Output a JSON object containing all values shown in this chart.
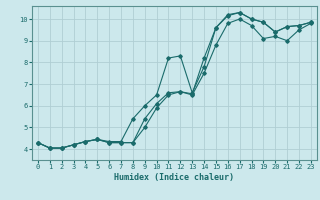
{
  "xlabel": "Humidex (Indice chaleur)",
  "bg_color": "#cce8ec",
  "grid_color": "#b0ced4",
  "line_color": "#1a6b6b",
  "xlim": [
    -0.5,
    23.5
  ],
  "ylim": [
    3.5,
    10.6
  ],
  "xticks": [
    0,
    1,
    2,
    3,
    4,
    5,
    6,
    7,
    8,
    9,
    10,
    11,
    12,
    13,
    14,
    15,
    16,
    17,
    18,
    19,
    20,
    21,
    22,
    23
  ],
  "yticks": [
    4,
    5,
    6,
    7,
    8,
    9,
    10
  ],
  "lines": [
    {
      "x": [
        0,
        1,
        2,
        3,
        4,
        5,
        6,
        7,
        8,
        9,
        10,
        11,
        12,
        13,
        14,
        15,
        16,
        17,
        18,
        19,
        20,
        21,
        22,
        23
      ],
      "y": [
        4.3,
        4.05,
        4.05,
        4.2,
        4.35,
        4.45,
        4.35,
        4.35,
        5.4,
        6.0,
        6.5,
        8.2,
        8.3,
        6.6,
        7.8,
        9.6,
        10.2,
        10.3,
        10.0,
        9.85,
        9.4,
        9.65,
        9.7,
        9.85
      ]
    },
    {
      "x": [
        0,
        1,
        2,
        3,
        4,
        5,
        6,
        7,
        8,
        9,
        10,
        11,
        12,
        13,
        14,
        15,
        16,
        17,
        18,
        19,
        20,
        21,
        22,
        23
      ],
      "y": [
        4.3,
        4.05,
        4.05,
        4.2,
        4.35,
        4.45,
        4.3,
        4.3,
        4.3,
        5.4,
        6.1,
        6.6,
        6.65,
        6.55,
        8.2,
        9.6,
        10.15,
        10.3,
        10.0,
        9.85,
        9.4,
        9.65,
        9.7,
        9.85
      ]
    },
    {
      "x": [
        0,
        1,
        2,
        3,
        4,
        5,
        6,
        7,
        8,
        9,
        10,
        11,
        12,
        13,
        14,
        15,
        16,
        17,
        18,
        19,
        20,
        21,
        22,
        23
      ],
      "y": [
        4.3,
        4.05,
        4.05,
        4.2,
        4.35,
        4.45,
        4.3,
        4.3,
        4.3,
        5.0,
        5.9,
        6.5,
        6.65,
        6.5,
        7.5,
        8.8,
        9.8,
        10.0,
        9.7,
        9.1,
        9.2,
        9.0,
        9.5,
        9.8
      ]
    }
  ]
}
